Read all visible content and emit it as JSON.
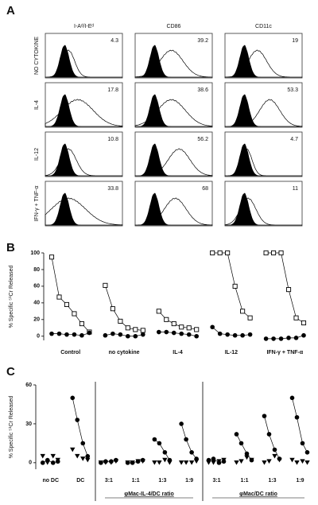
{
  "chart_data": [
    {
      "type": "histogram-grid",
      "panel_label": "A",
      "columns": [
        "I-Aᵈ/I-Eᵈ",
        "CD86",
        "CD11c"
      ],
      "rows": [
        "NO CYTOKINE",
        "IL-4",
        "IL-12",
        "IFN-γ + TNF-α"
      ],
      "values": [
        [
          4.3,
          39.2,
          19
        ],
        [
          17.8,
          38.6,
          53.3
        ],
        [
          10.8,
          56.2,
          4.7
        ],
        [
          33.8,
          68,
          11
        ]
      ]
    },
    {
      "type": "line",
      "panel_label": "B",
      "y_label": "% Specific ⁵¹Cr Released",
      "ylim": [
        -5,
        100
      ],
      "yticks": [
        0,
        20,
        40,
        60,
        80,
        100
      ],
      "categories": [
        "Control",
        "no cytokine",
        "IL-4",
        "IL-12",
        "IFN-γ + TNF-α"
      ],
      "series": [
        {
          "marker": "open-square",
          "color": "#000",
          "line": true,
          "values": [
            [
              95,
              47,
              38,
              27,
              15,
              5
            ],
            [
              61,
              33,
              18,
              10,
              8,
              7
            ],
            [
              30,
              20,
              15,
              11,
              10,
              8
            ],
            [
              100,
              100,
              100,
              60,
              30,
              22
            ],
            [
              100,
              100,
              100,
              56,
              22,
              16
            ]
          ]
        },
        {
          "marker": "filled-circle",
          "color": "#000",
          "line": true,
          "values": [
            [
              3,
              3,
              2,
              2,
              1,
              4
            ],
            [
              1,
              3,
              2,
              0,
              0,
              2
            ],
            [
              5,
              5,
              4,
              3,
              2,
              0
            ],
            [
              11,
              3,
              2,
              1,
              1,
              2
            ],
            [
              -3,
              -3,
              -3,
              -2,
              -2,
              1
            ]
          ]
        }
      ]
    },
    {
      "type": "line",
      "panel_label": "C",
      "y_label": "% Specific ⁵¹Cr Released",
      "ylim": [
        -5,
        60
      ],
      "yticks": [
        0,
        30,
        60
      ],
      "sections": [
        {
          "categories": [
            "no DC",
            "DC"
          ],
          "series": [
            {
              "marker": "filled-circle",
              "color": "#000",
              "line": true,
              "values": [
                [
                  0,
                  2,
                  0,
                  1
                ],
                [
                  50,
                  33,
                  15,
                  5
                ]
              ]
            },
            {
              "marker": "filled-triangle-down",
              "color": "#000",
              "line": false,
              "values": [
                [
                  5,
                  0,
                  5,
                  2
                ],
                [
                  10,
                  5,
                  3,
                  2
                ]
              ]
            }
          ]
        },
        {
          "title": "φMac-IL-4/DC ratio",
          "categories": [
            "3:1",
            "1:1",
            "1:3",
            "1:9"
          ],
          "series": [
            {
              "marker": "filled-circle",
              "color": "#000",
              "line": true,
              "values": [
                [
                  0,
                  1,
                  1,
                  2
                ],
                [
                  0,
                  0,
                  1,
                  2
                ],
                [
                  18,
                  15,
                  8,
                  2
                ],
                [
                  30,
                  18,
                  8,
                  3
                ]
              ]
            },
            {
              "marker": "filled-triangle-down",
              "color": "#000",
              "line": false,
              "values": [
                [
                  0,
                  0,
                  0,
                  1
                ],
                [
                  0,
                  0,
                  1,
                  1
                ],
                [
                  0,
                  0,
                  2,
                  0
                ],
                [
                  0,
                  0,
                  0,
                  1
                ]
              ]
            }
          ]
        },
        {
          "title": "φMac/DC ratio",
          "categories": [
            "3:1",
            "1:1",
            "1:3",
            "1:9"
          ],
          "series": [
            {
              "marker": "filled-circle",
              "color": "#000",
              "line": true,
              "values": [
                [
                  2,
                  3,
                  0,
                  1
                ],
                [
                  22,
                  15,
                  7,
                  2
                ],
                [
                  36,
                  22,
                  10,
                  3
                ],
                [
                  50,
                  35,
                  15,
                  8
                ]
              ]
            },
            {
              "marker": "filled-triangle-down",
              "color": "#000",
              "line": false,
              "values": [
                [
                  0,
                  0,
                  1,
                  2
                ],
                [
                  0,
                  1,
                  4,
                  2
                ],
                [
                  0,
                  1,
                  5,
                  2
                ],
                [
                  2,
                  0,
                  1,
                  0
                ]
              ]
            }
          ]
        }
      ]
    }
  ]
}
